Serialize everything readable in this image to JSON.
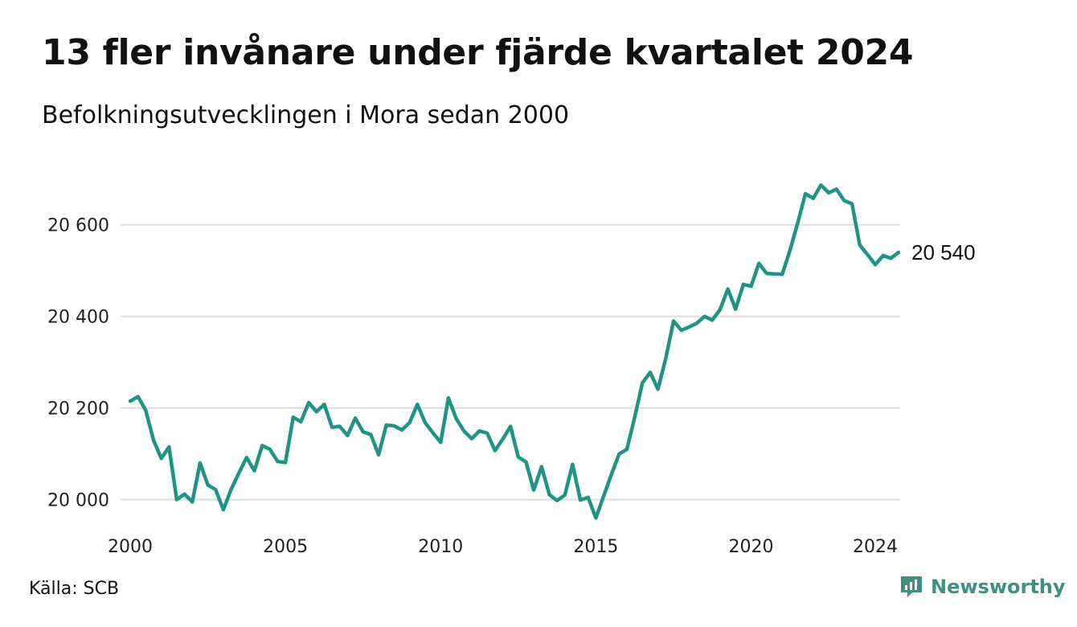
{
  "title": "13 fler invånare under fjärde kvartalet 2024",
  "subtitle": "Befolkningsutvecklingen i Mora sedan 2000",
  "source": "Källa: SCB",
  "brand": {
    "name": "Newsworthy",
    "icon": "newsworthy-logo-icon",
    "color": "#3f8f85"
  },
  "colors": {
    "line": "#1f9485",
    "grid": "#dddddd"
  },
  "chart_data": {
    "type": "line",
    "title": "13 fler invånare under fjärde kvartalet 2024",
    "subtitle": "Befolkningsutvecklingen i Mora sedan 2000",
    "xlabel": "",
    "ylabel": "",
    "x_ticks": [
      2000,
      2005,
      2010,
      2015,
      2020,
      2024
    ],
    "y_ticks": [
      20000,
      20200,
      20400,
      20600
    ],
    "y_tick_labels": [
      "20 000",
      "20 200",
      "20 400",
      "20 600"
    ],
    "ylim": [
      19950,
      20740
    ],
    "xlim": [
      2000,
      2024.75
    ],
    "grid": "horizontal",
    "end_label": "20 540",
    "series": [
      {
        "start": "2000 Q1",
        "frequency": "quarterly",
        "values": [
          20215,
          20225,
          20195,
          20130,
          20090,
          20115,
          20000,
          20012,
          19995,
          20080,
          20032,
          20022,
          19978,
          20022,
          20058,
          20092,
          20063,
          20118,
          20110,
          20083,
          20081,
          20180,
          20170,
          20212,
          20192,
          20208,
          20158,
          20160,
          20140,
          20178,
          20148,
          20142,
          20098,
          20163,
          20161,
          20152,
          20168,
          20208,
          20168,
          20146,
          20125,
          20222,
          20177,
          20150,
          20133,
          20150,
          20145,
          20107,
          20132,
          20160,
          20093,
          20082,
          20021,
          20072,
          20011,
          19998,
          20010,
          20077,
          19999,
          20005,
          19960,
          20008,
          20055,
          20100,
          20110,
          20180,
          20255,
          20278,
          20241,
          20308,
          20390,
          20370,
          20377,
          20385,
          20400,
          20392,
          20415,
          20460,
          20416,
          20470,
          20466,
          20516,
          20494,
          20493,
          20492,
          20544,
          20604,
          20668,
          20658,
          20687,
          20670,
          20678,
          20653,
          20646,
          20556,
          20535,
          20513,
          20533,
          20527,
          20540
        ]
      }
    ]
  }
}
